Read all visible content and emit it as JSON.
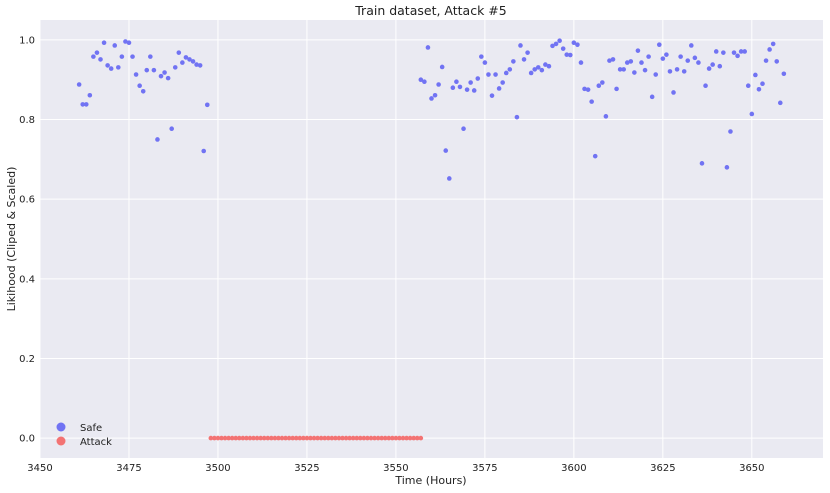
{
  "chart_data": {
    "type": "scatter",
    "title": "Train dataset, Attack #5",
    "xlabel": "Time (Hours)",
    "ylabel": "Likihood (Cliped & Scaled)",
    "xlim": [
      3450,
      3670
    ],
    "ylim": [
      -0.05,
      1.05
    ],
    "xticks": [
      3450,
      3475,
      3500,
      3525,
      3550,
      3575,
      3600,
      3625,
      3650
    ],
    "yticks": [
      0.0,
      0.2,
      0.4,
      0.6,
      0.8,
      1.0
    ],
    "grid": true,
    "legend_position": "lower-left",
    "series": [
      {
        "name": "Safe",
        "color": "#7173f3",
        "points": [
          [
            3461,
            0.888
          ],
          [
            3462,
            0.838
          ],
          [
            3463,
            0.838
          ],
          [
            3464,
            0.861
          ],
          [
            3465,
            0.958
          ],
          [
            3466,
            0.968
          ],
          [
            3467,
            0.951
          ],
          [
            3468,
            0.993
          ],
          [
            3469,
            0.936
          ],
          [
            3470,
            0.928
          ],
          [
            3471,
            0.986
          ],
          [
            3472,
            0.931
          ],
          [
            3473,
            0.958
          ],
          [
            3474,
            0.996
          ],
          [
            3475,
            0.993
          ],
          [
            3476,
            0.958
          ],
          [
            3477,
            0.913
          ],
          [
            3478,
            0.885
          ],
          [
            3479,
            0.871
          ],
          [
            3480,
            0.924
          ],
          [
            3481,
            0.958
          ],
          [
            3482,
            0.924
          ],
          [
            3483,
            0.75
          ],
          [
            3484,
            0.909
          ],
          [
            3485,
            0.918
          ],
          [
            3486,
            0.904
          ],
          [
            3487,
            0.777
          ],
          [
            3488,
            0.931
          ],
          [
            3489,
            0.968
          ],
          [
            3490,
            0.943
          ],
          [
            3491,
            0.956
          ],
          [
            3492,
            0.951
          ],
          [
            3493,
            0.946
          ],
          [
            3494,
            0.938
          ],
          [
            3495,
            0.936
          ],
          [
            3496,
            0.721
          ],
          [
            3497,
            0.837
          ],
          [
            3557,
            0.9
          ],
          [
            3558,
            0.895
          ],
          [
            3559,
            0.981
          ],
          [
            3560,
            0.853
          ],
          [
            3561,
            0.861
          ],
          [
            3562,
            0.888
          ],
          [
            3563,
            0.932
          ],
          [
            3564,
            0.722
          ],
          [
            3565,
            0.652
          ],
          [
            3566,
            0.88
          ],
          [
            3567,
            0.895
          ],
          [
            3568,
            0.882
          ],
          [
            3569,
            0.777
          ],
          [
            3570,
            0.875
          ],
          [
            3571,
            0.893
          ],
          [
            3572,
            0.873
          ],
          [
            3573,
            0.903
          ],
          [
            3574,
            0.958
          ],
          [
            3575,
            0.943
          ],
          [
            3576,
            0.913
          ],
          [
            3577,
            0.86
          ],
          [
            3578,
            0.913
          ],
          [
            3579,
            0.878
          ],
          [
            3580,
            0.893
          ],
          [
            3581,
            0.917
          ],
          [
            3582,
            0.926
          ],
          [
            3583,
            0.946
          ],
          [
            3584,
            0.806
          ],
          [
            3585,
            0.986
          ],
          [
            3586,
            0.951
          ],
          [
            3587,
            0.968
          ],
          [
            3588,
            0.917
          ],
          [
            3589,
            0.926
          ],
          [
            3590,
            0.931
          ],
          [
            3591,
            0.924
          ],
          [
            3592,
            0.938
          ],
          [
            3593,
            0.934
          ],
          [
            3594,
            0.985
          ],
          [
            3595,
            0.99
          ],
          [
            3596,
            0.998
          ],
          [
            3597,
            0.978
          ],
          [
            3598,
            0.963
          ],
          [
            3599,
            0.962
          ],
          [
            3600,
            0.993
          ],
          [
            3601,
            0.988
          ],
          [
            3602,
            0.943
          ],
          [
            3603,
            0.877
          ],
          [
            3604,
            0.875
          ],
          [
            3605,
            0.845
          ],
          [
            3606,
            0.708
          ],
          [
            3607,
            0.885
          ],
          [
            3608,
            0.893
          ],
          [
            3609,
            0.808
          ],
          [
            3610,
            0.948
          ],
          [
            3611,
            0.951
          ],
          [
            3612,
            0.877
          ],
          [
            3613,
            0.926
          ],
          [
            3614,
            0.926
          ],
          [
            3615,
            0.943
          ],
          [
            3616,
            0.946
          ],
          [
            3617,
            0.918
          ],
          [
            3618,
            0.973
          ],
          [
            3619,
            0.943
          ],
          [
            3620,
            0.924
          ],
          [
            3621,
            0.958
          ],
          [
            3622,
            0.857
          ],
          [
            3623,
            0.913
          ],
          [
            3624,
            0.988
          ],
          [
            3625,
            0.953
          ],
          [
            3626,
            0.963
          ],
          [
            3627,
            0.921
          ],
          [
            3628,
            0.868
          ],
          [
            3629,
            0.926
          ],
          [
            3630,
            0.958
          ],
          [
            3631,
            0.921
          ],
          [
            3632,
            0.948
          ],
          [
            3633,
            0.986
          ],
          [
            3634,
            0.955
          ],
          [
            3635,
            0.943
          ],
          [
            3636,
            0.69
          ],
          [
            3637,
            0.885
          ],
          [
            3638,
            0.928
          ],
          [
            3639,
            0.938
          ],
          [
            3640,
            0.971
          ],
          [
            3641,
            0.934
          ],
          [
            3642,
            0.968
          ],
          [
            3643,
            0.68
          ],
          [
            3644,
            0.77
          ],
          [
            3645,
            0.968
          ],
          [
            3646,
            0.96
          ],
          [
            3647,
            0.971
          ],
          [
            3648,
            0.971
          ],
          [
            3649,
            0.885
          ],
          [
            3650,
            0.814
          ],
          [
            3651,
            0.912
          ],
          [
            3652,
            0.876
          ],
          [
            3653,
            0.89
          ],
          [
            3654,
            0.948
          ],
          [
            3655,
            0.976
          ],
          [
            3656,
            0.99
          ],
          [
            3657,
            0.946
          ],
          [
            3658,
            0.842
          ],
          [
            3659,
            0.915
          ]
        ]
      },
      {
        "name": "Attack",
        "color": "#f37373",
        "x_range": [
          3498,
          3557
        ],
        "value": 0.0
      }
    ]
  }
}
